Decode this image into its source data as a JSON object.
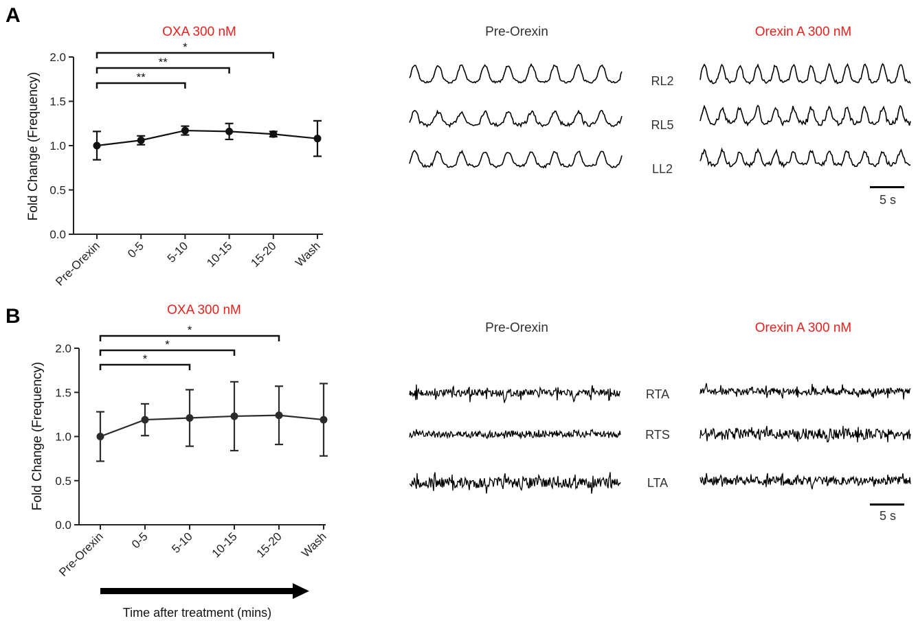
{
  "panels": {
    "A": {
      "letter": "A"
    },
    "B": {
      "letter": "B"
    }
  },
  "axis_title_bottom": "Time after treatment (mins)",
  "traces": {
    "A": {
      "pre_label": "Pre-Orexin",
      "post_label": "Orexin A 300 nM",
      "channels": [
        "RL2",
        "RL5",
        "LL2"
      ],
      "scale_bar": "5 s"
    },
    "B": {
      "pre_label": "Pre-Orexin",
      "post_label": "Orexin A 300 nM",
      "channels": [
        "RTA",
        "RTS",
        "LTA"
      ],
      "scale_bar": "5 s"
    }
  },
  "colors": {
    "accent_red": "#e8201c",
    "line": "#111111",
    "line_b": "#2b2b2b"
  },
  "chart_data": [
    {
      "type": "line",
      "title": "OXA 300 nM",
      "ylabel": "Fold Change (Frequency)",
      "xlabel": "",
      "categories": [
        "Pre-Orexin",
        "0-5",
        "5-10",
        "10-15",
        "15-20",
        "Wash"
      ],
      "values": [
        1.0,
        1.06,
        1.17,
        1.16,
        1.13,
        1.08
      ],
      "error": [
        0.16,
        0.05,
        0.05,
        0.09,
        0.03,
        0.2
      ],
      "ylim": [
        0,
        2.0
      ],
      "yticks": [
        "0.0",
        "0.5",
        "1.0",
        "1.5",
        "2.0"
      ],
      "significance": [
        {
          "from": "Pre-Orexin",
          "to": "5-10",
          "label": "**"
        },
        {
          "from": "Pre-Orexin",
          "to": "10-15",
          "label": "**"
        },
        {
          "from": "Pre-Orexin",
          "to": "15-20",
          "label": "*"
        }
      ]
    },
    {
      "type": "line",
      "title": "OXA 300 nM",
      "ylabel": "Fold Change (Frequency)",
      "xlabel": "Time after treatment (mins)",
      "categories": [
        "Pre-Orexin",
        "0-5",
        "5-10",
        "10-15",
        "15-20",
        "Wash"
      ],
      "values": [
        1.0,
        1.19,
        1.21,
        1.23,
        1.24,
        1.19
      ],
      "error": [
        0.28,
        0.18,
        0.32,
        0.39,
        0.33,
        0.41
      ],
      "ylim": [
        0,
        2.0
      ],
      "yticks": [
        "0.0",
        "0.5",
        "1.0",
        "1.5",
        "2.0"
      ],
      "significance": [
        {
          "from": "Pre-Orexin",
          "to": "5-10",
          "label": "*"
        },
        {
          "from": "Pre-Orexin",
          "to": "10-15",
          "label": "*"
        },
        {
          "from": "Pre-Orexin",
          "to": "15-20",
          "label": "*"
        }
      ]
    }
  ]
}
